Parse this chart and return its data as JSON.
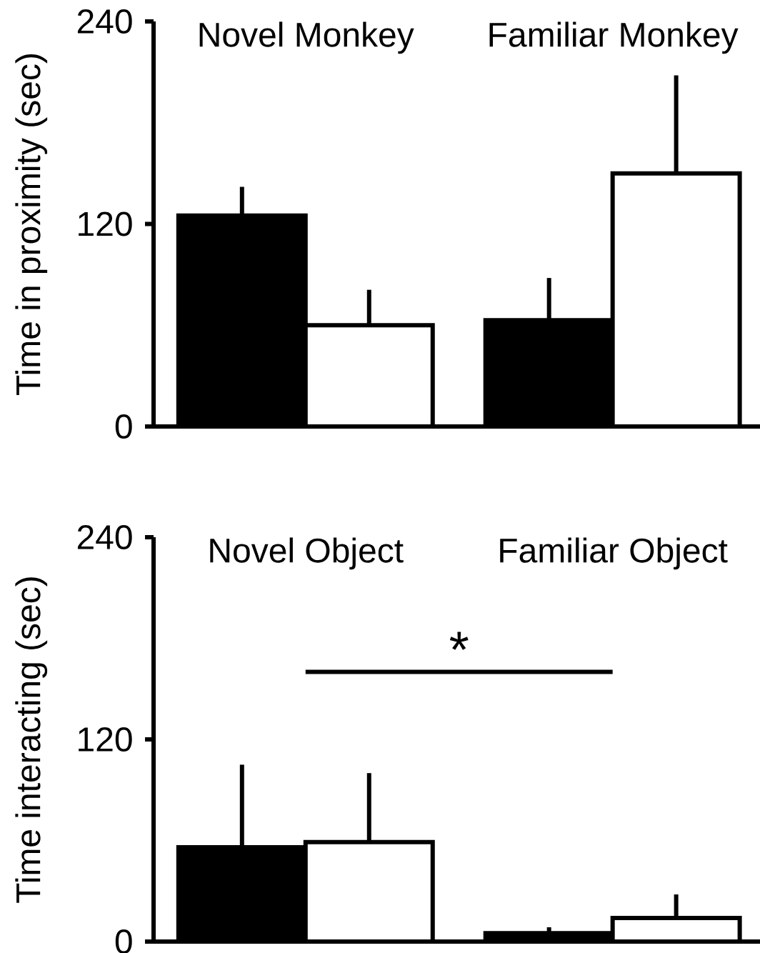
{
  "chart_data": [
    {
      "type": "bar",
      "ylabel": "Time in proximity (sec)",
      "categories": [
        "Novel Monkey",
        "Familiar Monkey"
      ],
      "ylim": [
        0,
        240
      ],
      "yticks": [
        0,
        120,
        240
      ],
      "series": [
        {
          "color": "#000000",
          "values": [
            125,
            63
          ],
          "errors": [
            [
              125,
              142
            ],
            [
              63,
              88
            ]
          ]
        },
        {
          "color": "#ffffff",
          "values": [
            60,
            150
          ],
          "errors": [
            [
              60,
              81
            ],
            [
              150,
              208
            ]
          ]
        }
      ]
    },
    {
      "type": "bar",
      "ylabel": "Time interacting (sec)",
      "categories": [
        "Novel Object",
        "Familiar Object"
      ],
      "ylim": [
        0,
        240
      ],
      "yticks": [
        0,
        120,
        240
      ],
      "annotations": [
        "*"
      ],
      "series": [
        {
          "color": "#000000",
          "values": [
            56,
            5
          ],
          "errors": [
            [
              56,
              105
            ],
            [
              5,
              8.5
            ]
          ]
        },
        {
          "color": "#ffffff",
          "values": [
            59,
            14
          ],
          "errors": [
            [
              59,
              100
            ],
            [
              14,
              28
            ]
          ]
        }
      ]
    }
  ]
}
